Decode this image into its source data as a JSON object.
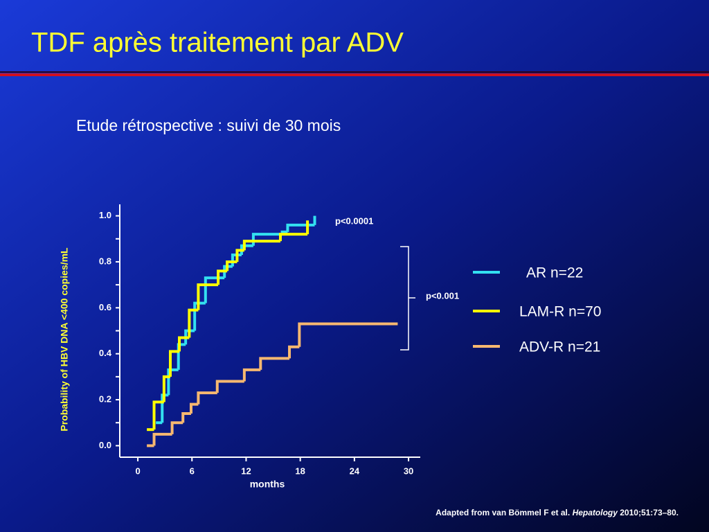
{
  "header": {
    "title": "TDF après traitement par ADV",
    "subtitle": "Etude rétrospective : suivi de 30 mois"
  },
  "chart_data": {
    "type": "step",
    "xlabel": "months",
    "ylabel": "Probability of HBV DNA <400 copies/mL",
    "xlim": [
      -2,
      31.3
    ],
    "ylim": [
      -0.05,
      1.05
    ],
    "xticks": [
      0,
      6,
      12,
      18,
      24,
      30
    ],
    "yticks": [
      {
        "value": 0,
        "label": "0.0"
      },
      {
        "value": 0.2,
        "label": "0.2"
      },
      {
        "value": 0.4,
        "label": "0.4"
      },
      {
        "value": 0.6,
        "label": "0.6"
      },
      {
        "value": 0.8,
        "label": "0.8"
      },
      {
        "value": 1,
        "label": "1.0"
      }
    ],
    "yminorticks": [
      0.1,
      0.3,
      0.5,
      0.7,
      0.9
    ],
    "annotations": [
      "p<0.0001",
      "p<0.001"
    ],
    "series": [
      {
        "name": "AR n=22",
        "color": "#33e0f0",
        "x": [
          2.0,
          2.7,
          3.4,
          4.5,
          5.3,
          6.3,
          7.5,
          9.6,
          10.5,
          11.5,
          12.8,
          16.0,
          16.6,
          19.6
        ],
        "values": [
          0.1,
          0.22,
          0.33,
          0.44,
          0.5,
          0.62,
          0.73,
          0.78,
          0.83,
          0.87,
          0.92,
          0.93,
          0.96,
          1.0
        ]
      },
      {
        "name": "LAM-R n=70",
        "color": "#ffff00",
        "x": [
          1.0,
          1.8,
          2.9,
          3.6,
          4.6,
          5.7,
          6.7,
          8.9,
          9.9,
          11.0,
          11.8,
          15.8,
          18.8
        ],
        "values": [
          0.07,
          0.19,
          0.3,
          0.41,
          0.47,
          0.59,
          0.7,
          0.76,
          0.8,
          0.85,
          0.89,
          0.92,
          0.98
        ]
      },
      {
        "name": "ADV-R n=21",
        "color": "#f7b870",
        "x": [
          1.0,
          1.8,
          3.8,
          5.0,
          5.9,
          6.7,
          8.8,
          11.8,
          13.6,
          16.8,
          17.9,
          28.8
        ],
        "values": [
          0.0,
          0.05,
          0.1,
          0.14,
          0.18,
          0.23,
          0.28,
          0.33,
          0.38,
          0.43,
          0.53,
          0.53
        ]
      }
    ]
  },
  "citation": {
    "prefix": "Adapted from van Bömmel F et al.",
    "journal": "Hepatology",
    "suffix": "2010;51:73–80."
  }
}
